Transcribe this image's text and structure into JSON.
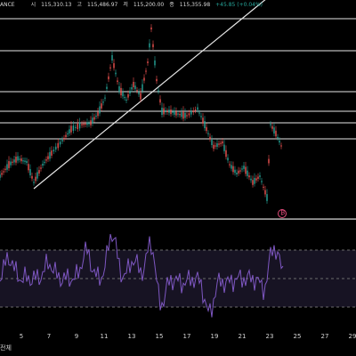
{
  "header": {
    "symbol_suffix": "ANCE",
    "open_label": "시",
    "open": "115,310.13",
    "high_label": "고",
    "high": "115,486.97",
    "low_label": "저",
    "low": "115,200.00",
    "close_label": "종",
    "close": "115,355.98",
    "change": "+45.85 (+0.04%)"
  },
  "time_axis": {
    "ticks": [
      "5",
      "7",
      "9",
      "11",
      "13",
      "15",
      "17",
      "19",
      "21",
      "23",
      "25",
      "27",
      "29"
    ]
  },
  "footer": {
    "period_label": "전체"
  },
  "colors": {
    "up": "#26a69a",
    "down": "#ef5350",
    "rsi": "#7e57c2",
    "rsi_band": "#2a2340"
  },
  "chart_data": {
    "type": "candlestick",
    "price": {
      "horizontal_levels": [
        "level-1",
        "level-2",
        "level-3",
        "level-4",
        "level-5",
        "level-6",
        "level-7"
      ],
      "trendline": "diagonal-up"
    },
    "rsi": {
      "band": "oversold-overbought",
      "levels": [
        70,
        30
      ]
    }
  }
}
